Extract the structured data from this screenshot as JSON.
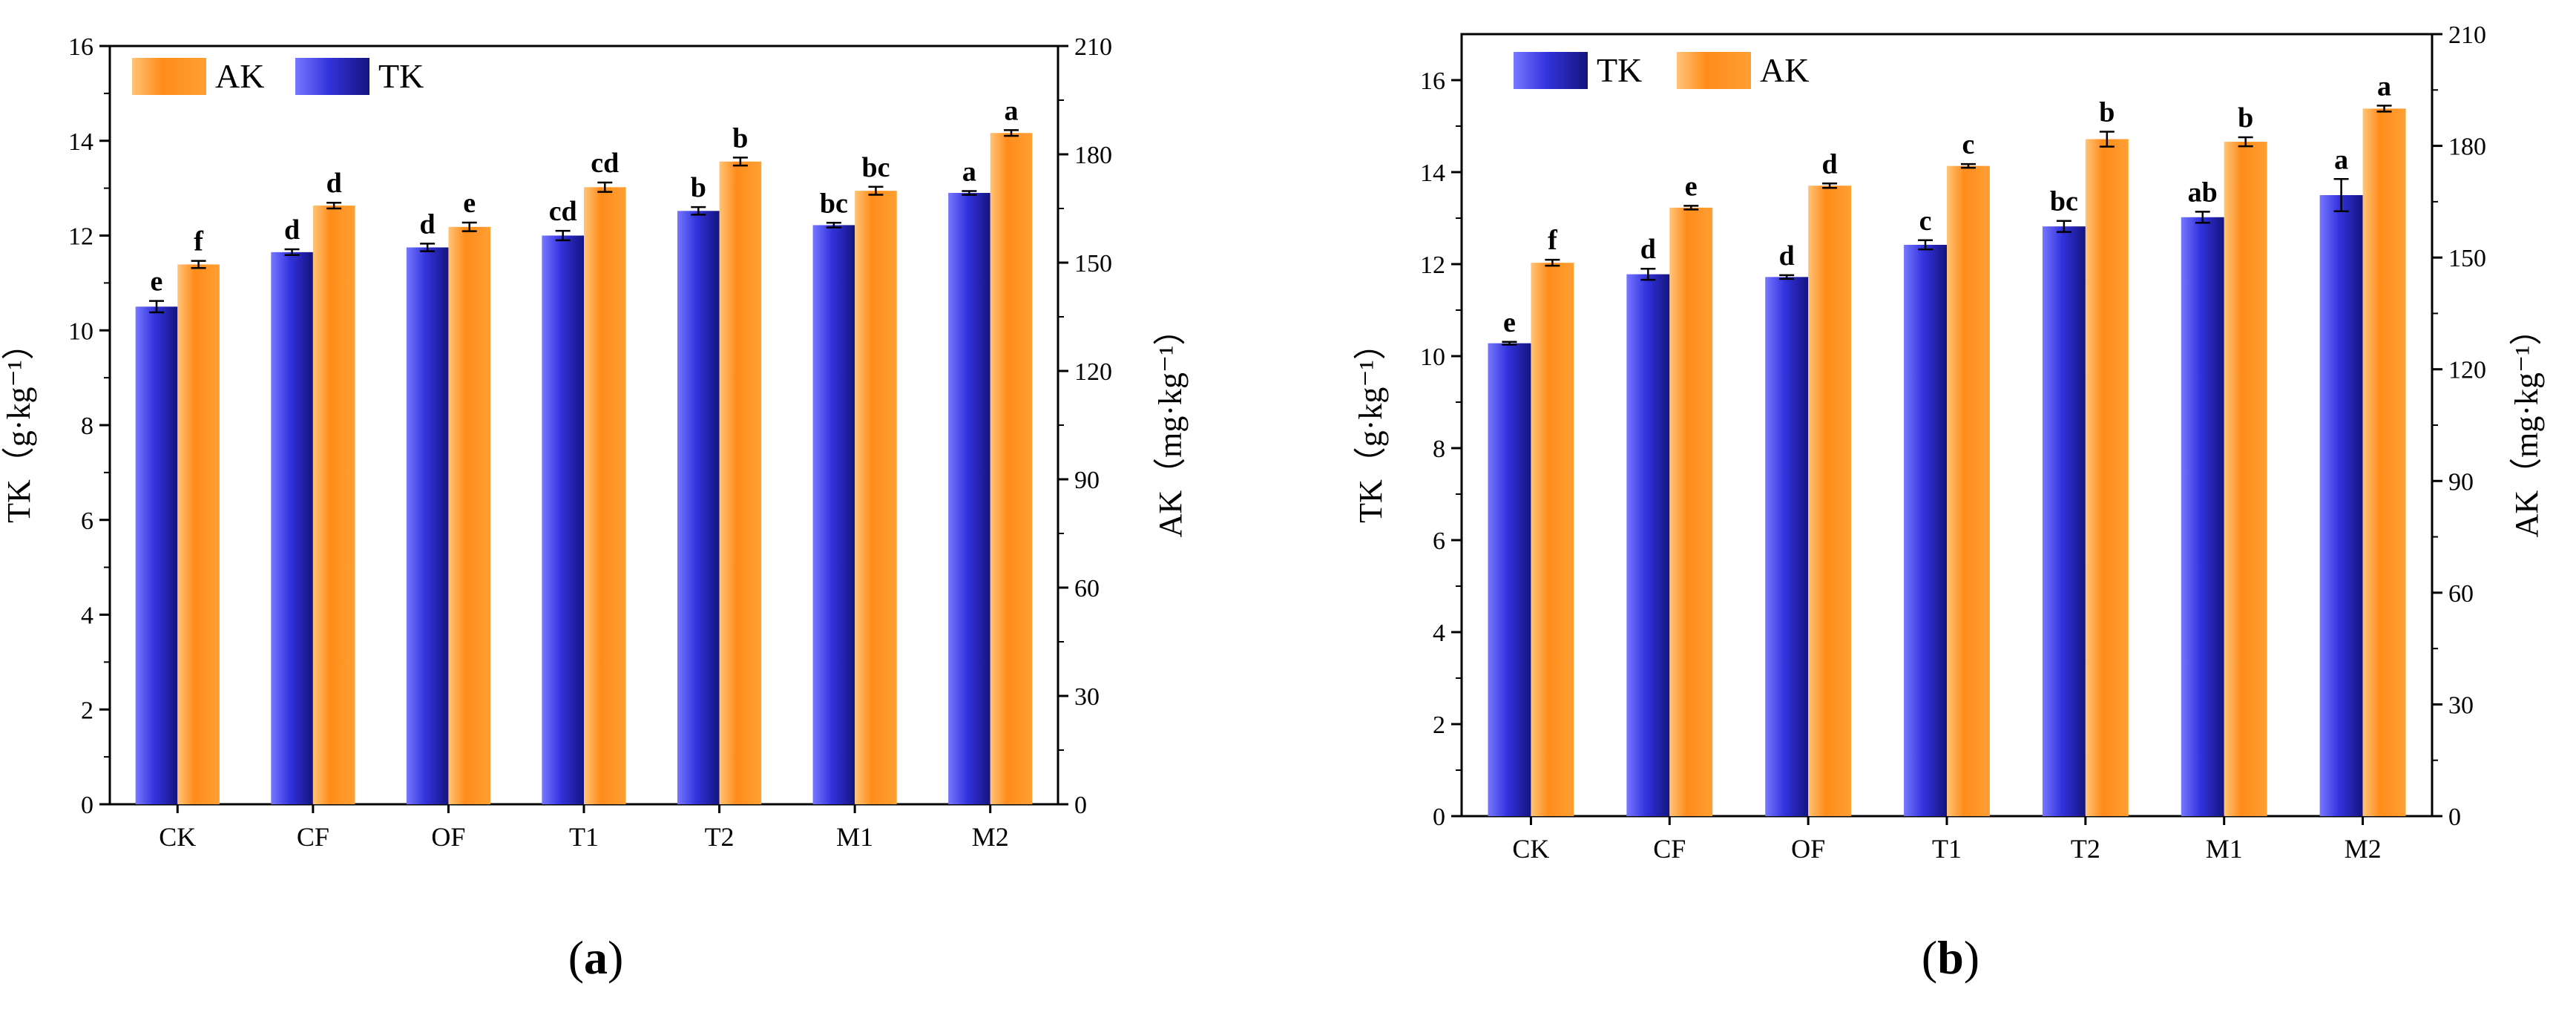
{
  "colors": {
    "TK": "#3434d8",
    "AK": "#ff8c1a"
  },
  "chart_data": [
    {
      "type": "bar",
      "panel_label_parts": [
        "(",
        "a",
        ")"
      ],
      "categories": [
        "CK",
        "CF",
        "OF",
        "T1",
        "T2",
        "M1",
        "M2"
      ],
      "legend_order": [
        "AK",
        "TK"
      ],
      "legend_position": "top-left",
      "ylabel": "TK（g·kg⁻¹）",
      "y2label": "AK（mg·kg⁻¹）",
      "ylim": [
        0,
        16
      ],
      "yticks": [
        "0",
        "2",
        "4",
        "6",
        "8",
        "10",
        "12",
        "14",
        "16"
      ],
      "y2lim": [
        0,
        210
      ],
      "y2ticks": [
        "0",
        "30",
        "60",
        "90",
        "120",
        "150",
        "180",
        "210"
      ],
      "series": [
        {
          "name": "TK",
          "axis": "left",
          "values": [
            10.5,
            11.65,
            11.75,
            12.0,
            12.52,
            12.22,
            12.9
          ],
          "errors": [
            0.12,
            0.06,
            0.08,
            0.1,
            0.08,
            0.05,
            0.04
          ],
          "sig": [
            "e",
            "d",
            "d",
            "cd",
            "b",
            "bc",
            "a"
          ]
        },
        {
          "name": "AK",
          "axis": "right",
          "values": [
            149.5,
            165.8,
            159.9,
            170.9,
            178.0,
            169.9,
            185.9
          ],
          "errors": [
            1.0,
            0.8,
            1.2,
            1.3,
            1.1,
            1.1,
            0.8
          ],
          "sig": [
            "f",
            "d",
            "e",
            "cd",
            "b",
            "bc",
            "a"
          ]
        }
      ]
    },
    {
      "type": "bar",
      "panel_label_parts": [
        "(",
        "b",
        ")"
      ],
      "categories": [
        "CK",
        "CF",
        "OF",
        "T1",
        "T2",
        "M1",
        "M2"
      ],
      "legend_order": [
        "TK",
        "AK"
      ],
      "legend_position": "top-left",
      "ylabel": "TK（g·kg⁻¹）",
      "y2label": "AK（mg·kg⁻¹）",
      "ylim": [
        0,
        17
      ],
      "yticks": [
        "0",
        "2",
        "4",
        "6",
        "8",
        "10",
        "12",
        "14",
        "16"
      ],
      "y2lim": [
        0,
        210
      ],
      "y2ticks": [
        "0",
        "30",
        "60",
        "90",
        "120",
        "150",
        "180",
        "210"
      ],
      "series": [
        {
          "name": "TK",
          "axis": "left",
          "values": [
            10.28,
            11.78,
            11.72,
            12.42,
            12.82,
            13.02,
            13.5
          ],
          "errors": [
            0.03,
            0.12,
            0.04,
            0.1,
            0.12,
            0.12,
            0.35
          ],
          "sig": [
            "e",
            "d",
            "d",
            "c",
            "bc",
            "ab",
            "a"
          ]
        },
        {
          "name": "AK",
          "axis": "right",
          "values": [
            148.6,
            163.4,
            169.3,
            174.6,
            181.8,
            181.1,
            190.0
          ],
          "errors": [
            0.8,
            0.5,
            0.6,
            0.5,
            2.0,
            1.2,
            0.8
          ],
          "sig": [
            "f",
            "e",
            "d",
            "c",
            "b",
            "b",
            "a"
          ]
        }
      ]
    }
  ]
}
